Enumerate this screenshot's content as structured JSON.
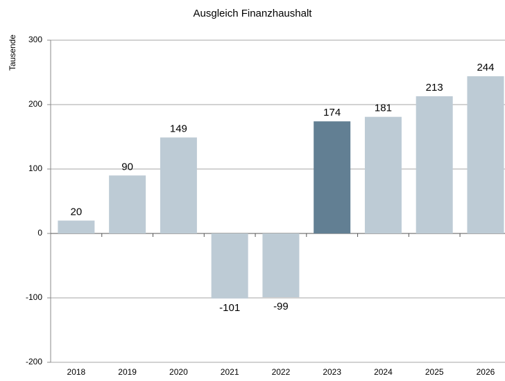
{
  "chart_data": {
    "type": "bar",
    "title": "Ausgleich Finanzhaushalt",
    "y_label": "Tausende",
    "categories": [
      "2018",
      "2019",
      "2020",
      "2021",
      "2022",
      "2023",
      "2024",
      "2025",
      "2026"
    ],
    "values": [
      20,
      90,
      149,
      -101,
      -99,
      174,
      181,
      213,
      244
    ],
    "colors": [
      "#bdcbd5",
      "#bdcbd5",
      "#bdcbd5",
      "#bdcbd5",
      "#bdcbd5",
      "#627f93",
      "#bdcbd5",
      "#bdcbd5",
      "#bdcbd5"
    ],
    "ylim": [
      -200,
      300
    ],
    "yticks": [
      -200,
      -100,
      0,
      100,
      200,
      300
    ],
    "grid": true
  }
}
